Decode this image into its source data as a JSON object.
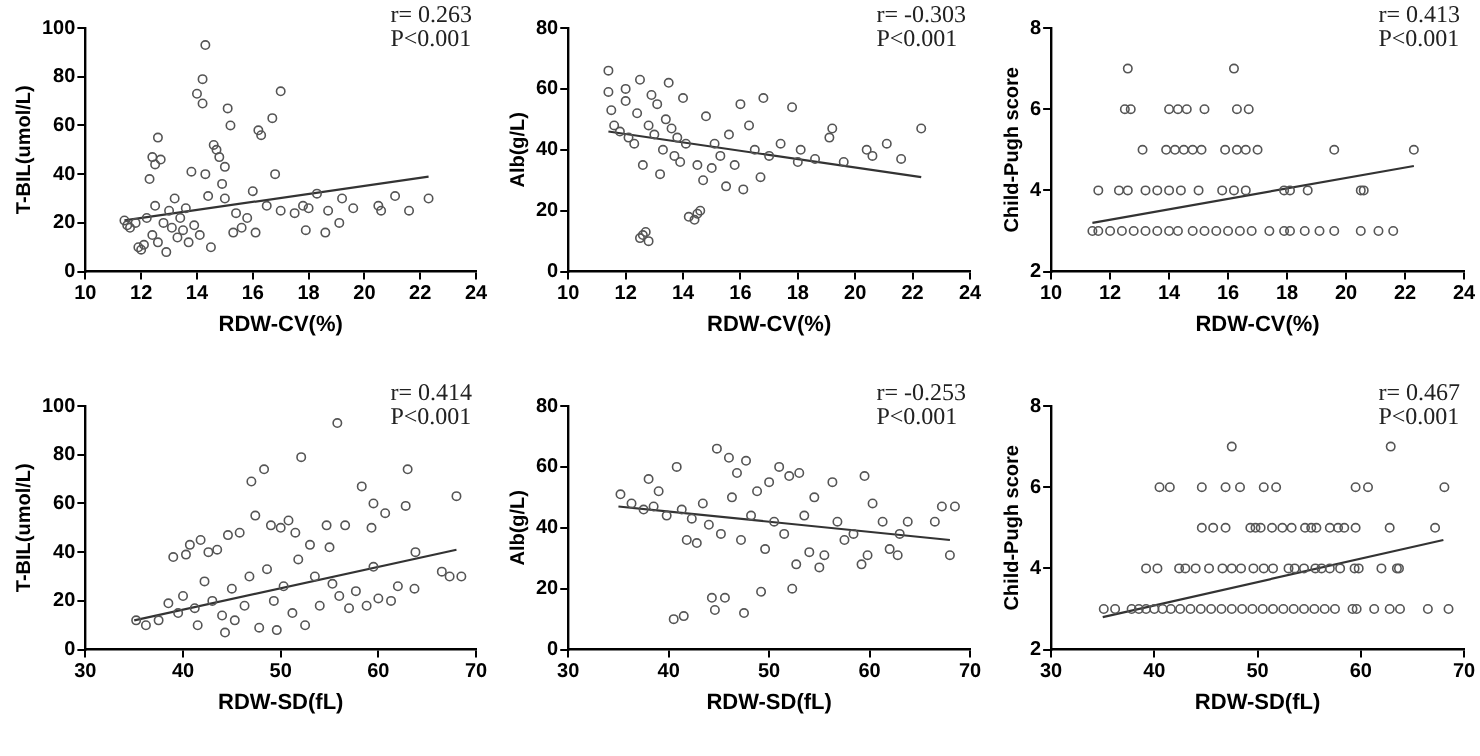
{
  "chart_data": [
    {
      "type": "scatter",
      "xlabel": "RDW-CV(%)",
      "ylabel": "T-BIL(umol/L)",
      "xlim": [
        10,
        24
      ],
      "xticks": [
        10,
        12,
        14,
        16,
        18,
        20,
        22,
        24
      ],
      "ylim": [
        0,
        100
      ],
      "yticks": [
        0,
        20,
        40,
        60,
        80,
        100
      ],
      "annotations": [
        "r= 0.263",
        "P<0.001"
      ],
      "series": [
        {
          "marker": "circle",
          "color": "#555555",
          "x": [
            11.4,
            11.5,
            11.6,
            11.8,
            11.9,
            12.0,
            12.1,
            12.2,
            12.3,
            12.4,
            12.5,
            12.6,
            12.7,
            12.4,
            12.5,
            12.6,
            12.8,
            12.9,
            13.0,
            13.1,
            13.2,
            13.3,
            13.4,
            13.5,
            13.6,
            13.7,
            13.8,
            13.9,
            14.0,
            14.1,
            14.2,
            14.2,
            14.3,
            14.3,
            14.4,
            14.5,
            14.6,
            14.7,
            14.8,
            14.9,
            15.0,
            15.1,
            15.2,
            15.0,
            15.3,
            15.4,
            15.6,
            15.8,
            16.0,
            16.1,
            16.2,
            16.3,
            16.5,
            16.7,
            16.8,
            17.0,
            17.0,
            17.5,
            17.8,
            17.9,
            18.0,
            18.3,
            18.6,
            18.7,
            19.1,
            19.2,
            19.6,
            20.5,
            20.6,
            21.1,
            21.6,
            22.3
          ],
          "values": [
            21,
            19,
            18,
            20,
            10,
            9,
            11,
            22,
            38,
            47,
            44,
            55,
            46,
            15,
            27,
            12,
            20,
            8,
            25,
            18,
            30,
            14,
            22,
            17,
            26,
            12,
            41,
            19,
            73,
            15,
            79,
            69,
            93,
            40,
            31,
            10,
            52,
            50,
            47,
            36,
            43,
            67,
            60,
            30,
            16,
            24,
            18,
            22,
            33,
            16,
            58,
            56,
            27,
            63,
            40,
            74,
            25,
            24,
            27,
            17,
            26,
            32,
            16,
            25,
            20,
            30,
            26,
            27,
            25,
            31,
            25,
            30
          ]
        },
        {
          "type": "line",
          "color": "#333333",
          "x": [
            11.4,
            22.3
          ],
          "values": [
            21,
            39
          ]
        }
      ]
    },
    {
      "type": "scatter",
      "xlabel": "RDW-CV(%)",
      "ylabel": "Alb(g/L)",
      "xlim": [
        10,
        24
      ],
      "xticks": [
        10,
        12,
        14,
        16,
        18,
        20,
        22,
        24
      ],
      "ylim": [
        0,
        80
      ],
      "yticks": [
        0,
        20,
        40,
        60,
        80
      ],
      "annotations": [
        "r= -0.303",
        "P<0.001"
      ],
      "series": [
        {
          "marker": "circle",
          "color": "#555555",
          "x": [
            11.4,
            11.4,
            11.5,
            11.6,
            11.8,
            12.0,
            12.0,
            12.1,
            12.3,
            12.4,
            12.5,
            12.5,
            12.6,
            12.6,
            12.7,
            12.8,
            12.8,
            12.9,
            13.0,
            13.1,
            13.2,
            13.3,
            13.4,
            13.5,
            13.6,
            13.7,
            13.8,
            13.9,
            14.0,
            14.1,
            14.2,
            14.4,
            14.5,
            14.6,
            14.5,
            14.7,
            14.8,
            15.0,
            15.1,
            15.3,
            15.5,
            15.6,
            15.8,
            16.0,
            16.1,
            16.3,
            16.5,
            16.7,
            16.8,
            17.0,
            17.4,
            17.8,
            18.0,
            18.1,
            18.6,
            19.1,
            19.2,
            19.6,
            20.4,
            20.6,
            21.1,
            21.6,
            22.3
          ],
          "values": [
            66,
            59,
            53,
            48,
            46,
            60,
            56,
            44,
            42,
            52,
            63,
            11,
            35,
            12,
            13,
            10,
            48,
            58,
            45,
            55,
            32,
            40,
            50,
            62,
            47,
            38,
            44,
            36,
            57,
            42,
            18,
            17,
            19,
            20,
            35,
            30,
            51,
            34,
            42,
            38,
            28,
            45,
            35,
            55,
            27,
            48,
            40,
            31,
            57,
            38,
            42,
            54,
            36,
            40,
            37,
            44,
            47,
            36,
            40,
            38,
            42,
            37,
            47
          ]
        },
        {
          "type": "line",
          "color": "#333333",
          "x": [
            11.4,
            22.3
          ],
          "values": [
            46,
            31
          ]
        }
      ]
    },
    {
      "type": "scatter",
      "xlabel": "RDW-CV(%)",
      "ylabel": "Child-Pugh score",
      "xlim": [
        10,
        24
      ],
      "xticks": [
        10,
        12,
        14,
        16,
        18,
        20,
        22,
        24
      ],
      "ylim": [
        2,
        8
      ],
      "yticks": [
        2,
        4,
        6,
        8
      ],
      "annotations": [
        "r= 0.413",
        "P<0.001"
      ],
      "series": [
        {
          "marker": "circle",
          "color": "#555555",
          "x": [
            11.4,
            11.6,
            12.0,
            12.4,
            12.8,
            13.2,
            13.6,
            14.0,
            14.3,
            14.8,
            15.2,
            15.6,
            16.0,
            16.4,
            16.8,
            17.4,
            17.9,
            18.1,
            18.6,
            19.1,
            19.6,
            20.5,
            21.1,
            21.6,
            11.6,
            12.3,
            12.6,
            13.2,
            13.6,
            14.0,
            14.4,
            15.0,
            15.8,
            16.2,
            16.6,
            17.9,
            18.1,
            18.7,
            20.5,
            20.6,
            13.1,
            13.9,
            14.2,
            14.5,
            14.8,
            15.1,
            15.9,
            16.3,
            16.6,
            17.0,
            19.6,
            22.3,
            12.5,
            12.7,
            14.0,
            14.3,
            14.6,
            15.2,
            16.3,
            16.7,
            12.6,
            16.2
          ],
          "values": [
            3,
            3,
            3,
            3,
            3,
            3,
            3,
            3,
            3,
            3,
            3,
            3,
            3,
            3,
            3,
            3,
            3,
            3,
            3,
            3,
            3,
            3,
            3,
            3,
            4,
            4,
            4,
            4,
            4,
            4,
            4,
            4,
            4,
            4,
            4,
            4,
            4,
            4,
            4,
            4,
            5,
            5,
            5,
            5,
            5,
            5,
            5,
            5,
            5,
            5,
            5,
            5,
            6,
            6,
            6,
            6,
            6,
            6,
            6,
            6,
            7,
            7
          ]
        },
        {
          "type": "line",
          "color": "#333333",
          "x": [
            11.4,
            22.3
          ],
          "values": [
            3.2,
            4.6
          ]
        }
      ]
    },
    {
      "type": "scatter",
      "xlabel": "RDW-SD(fL)",
      "ylabel": "T-BIL(umol/L)",
      "xlim": [
        30,
        70
      ],
      "xticks": [
        30,
        40,
        50,
        60,
        70
      ],
      "ylim": [
        0,
        100
      ],
      "yticks": [
        0,
        20,
        40,
        60,
        80,
        100
      ],
      "annotations": [
        "r= 0.414",
        "P<0.001"
      ],
      "series": [
        {
          "marker": "circle",
          "color": "#555555",
          "x": [
            35.2,
            36.2,
            37.5,
            38.5,
            39.0,
            39.5,
            40.0,
            40.3,
            40.7,
            41.2,
            41.5,
            41.8,
            42.2,
            42.6,
            43.0,
            43.5,
            44.0,
            44.3,
            44.6,
            45.0,
            45.3,
            45.8,
            46.3,
            46.8,
            47.0,
            47.4,
            47.8,
            48.3,
            48.6,
            49.0,
            49.3,
            49.6,
            50.0,
            50.3,
            50.8,
            51.2,
            51.5,
            51.8,
            52.1,
            52.5,
            53.0,
            53.5,
            54.0,
            54.7,
            55.0,
            55.3,
            55.8,
            56.0,
            56.6,
            57.0,
            57.7,
            58.3,
            58.8,
            59.3,
            59.5,
            59.5,
            60.0,
            60.7,
            61.3,
            62.0,
            62.8,
            63.0,
            63.7,
            63.8,
            66.5,
            67.3,
            68.0,
            68.5
          ],
          "values": [
            12,
            10,
            12,
            19,
            38,
            15,
            22,
            39,
            43,
            17,
            10,
            45,
            28,
            40,
            20,
            41,
            14,
            7,
            47,
            25,
            12,
            48,
            18,
            30,
            69,
            55,
            9,
            74,
            33,
            51,
            20,
            8,
            50,
            26,
            53,
            15,
            48,
            37,
            79,
            10,
            43,
            30,
            18,
            51,
            42,
            27,
            93,
            22,
            51,
            17,
            24,
            67,
            18,
            50,
            60,
            34,
            21,
            56,
            20,
            26,
            59,
            74,
            25,
            40,
            32,
            30,
            63,
            30
          ]
        },
        {
          "type": "line",
          "color": "#333333",
          "x": [
            35,
            68
          ],
          "values": [
            12,
            41
          ]
        }
      ]
    },
    {
      "type": "scatter",
      "xlabel": "RDW-SD(fL)",
      "ylabel": "Alb(g/L)",
      "xlim": [
        30,
        70
      ],
      "xticks": [
        30,
        40,
        50,
        60,
        70
      ],
      "ylim": [
        0,
        80
      ],
      "yticks": [
        0,
        20,
        40,
        60,
        80
      ],
      "annotations": [
        "r= -0.253",
        "P<0.001"
      ],
      "series": [
        {
          "marker": "circle",
          "color": "#555555",
          "x": [
            35.2,
            36.3,
            37.5,
            38.0,
            38.5,
            39.0,
            39.8,
            40.5,
            40.8,
            41.3,
            41.5,
            41.8,
            42.3,
            42.8,
            43.4,
            44.0,
            44.3,
            44.6,
            44.8,
            45.2,
            45.6,
            46.0,
            46.3,
            46.8,
            47.2,
            47.5,
            47.7,
            48.2,
            48.8,
            49.2,
            49.6,
            50.0,
            50.5,
            51.0,
            51.5,
            52.0,
            52.3,
            52.7,
            53.0,
            53.5,
            54.0,
            54.5,
            55.0,
            55.5,
            56.3,
            56.8,
            57.5,
            58.4,
            59.2,
            59.5,
            59.8,
            60.3,
            61.3,
            62.0,
            62.8,
            63.0,
            63.8,
            66.5,
            67.2,
            68.0,
            68.5
          ],
          "values": [
            51,
            48,
            46,
            56,
            47,
            52,
            44,
            10,
            60,
            46,
            11,
            36,
            43,
            35,
            48,
            41,
            17,
            13,
            66,
            38,
            17,
            63,
            50,
            58,
            36,
            12,
            62,
            44,
            52,
            19,
            33,
            55,
            42,
            60,
            38,
            57,
            20,
            28,
            58,
            44,
            32,
            50,
            27,
            31,
            55,
            42,
            36,
            38,
            28,
            57,
            31,
            48,
            42,
            33,
            31,
            38,
            42,
            42,
            47,
            31,
            47
          ]
        },
        {
          "type": "line",
          "color": "#333333",
          "x": [
            35,
            68
          ],
          "values": [
            47,
            36
          ]
        }
      ]
    },
    {
      "type": "scatter",
      "xlabel": "RDW-SD(fL)",
      "ylabel": "Child-Pugh score",
      "xlim": [
        30,
        70
      ],
      "xticks": [
        30,
        40,
        50,
        60,
        70
      ],
      "ylim": [
        2,
        8
      ],
      "yticks": [
        2,
        4,
        6,
        8
      ],
      "annotations": [
        "r= 0.467",
        "P<0.001"
      ],
      "series": [
        {
          "marker": "circle",
          "color": "#555555",
          "x": [
            35.1,
            36.2,
            37.8,
            38.5,
            39.2,
            40.0,
            40.8,
            41.6,
            42.5,
            43.5,
            44.5,
            45.5,
            46.5,
            47.5,
            48.5,
            49.5,
            50.5,
            51.5,
            52.5,
            53.5,
            54.5,
            55.5,
            56.5,
            57.5,
            59.2,
            59.6,
            61.3,
            62.8,
            63.8,
            66.5,
            68.5,
            39.2,
            40.3,
            42.4,
            43.0,
            44.0,
            45.3,
            46.6,
            47.5,
            48.4,
            49.6,
            50.6,
            51.5,
            53.0,
            53.6,
            54.5,
            55.6,
            56.2,
            57.0,
            58.0,
            59.4,
            59.8,
            62.0,
            63.5,
            63.7,
            44.6,
            45.7,
            46.9,
            49.3,
            49.8,
            50.3,
            51.4,
            52.4,
            53.3,
            54.6,
            55.2,
            55.7,
            57.0,
            57.8,
            58.4,
            59.5,
            62.8,
            67.2,
            40.5,
            41.5,
            44.6,
            46.9,
            48.3,
            50.6,
            51.8,
            59.5,
            60.7,
            68.1,
            47.5,
            62.9
          ],
          "values": [
            3,
            3,
            3,
            3,
            3,
            3,
            3,
            3,
            3,
            3,
            3,
            3,
            3,
            3,
            3,
            3,
            3,
            3,
            3,
            3,
            3,
            3,
            3,
            3,
            3,
            3,
            3,
            3,
            3,
            3,
            3,
            4,
            4,
            4,
            4,
            4,
            4,
            4,
            4,
            4,
            4,
            4,
            4,
            4,
            4,
            4,
            4,
            4,
            4,
            4,
            4,
            4,
            4,
            4,
            4,
            5,
            5,
            5,
            5,
            5,
            5,
            5,
            5,
            5,
            5,
            5,
            5,
            5,
            5,
            5,
            5,
            5,
            5,
            6,
            6,
            6,
            6,
            6,
            6,
            6,
            6,
            6,
            6,
            7,
            7
          ]
        },
        {
          "type": "line",
          "color": "#333333",
          "x": [
            35,
            68
          ],
          "values": [
            2.8,
            4.7
          ]
        }
      ]
    }
  ]
}
